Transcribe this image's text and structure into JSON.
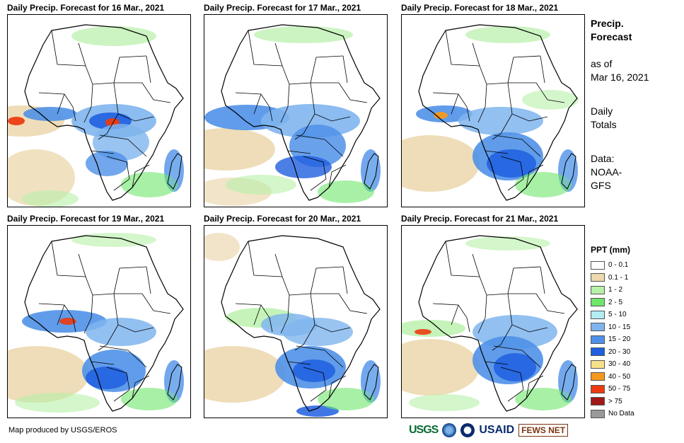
{
  "panels": [
    {
      "title": "Daily Precip. Forecast for 16 Mar., 2021"
    },
    {
      "title": "Daily Precip. Forecast for 17 Mar., 2021"
    },
    {
      "title": "Daily Precip. Forecast for 18 Mar., 2021"
    },
    {
      "title": "Daily Precip. Forecast for 19 Mar., 2021"
    },
    {
      "title": "Daily Precip. Forecast for 20 Mar., 2021"
    },
    {
      "title": "Daily Precip. Forecast for 21 Mar., 2021"
    }
  ],
  "side": {
    "title_line1": "Precip.",
    "title_line2": "Forecast",
    "asof_line1": "as of",
    "asof_line2": "Mar 16, 2021",
    "totals_line1": "Daily",
    "totals_line2": "Totals",
    "data_line1": "Data:",
    "data_line2": "NOAA-",
    "data_line3": "GFS"
  },
  "legend": {
    "title": "PPT (mm)",
    "items": [
      {
        "label": "0 - 0.1",
        "color": "#ffffff"
      },
      {
        "label": "0.1 - 1",
        "color": "#ecd9b0"
      },
      {
        "label": "1 - 2",
        "color": "#b7f0a8"
      },
      {
        "label": "2 - 5",
        "color": "#6ee66a"
      },
      {
        "label": "5 - 10",
        "color": "#b3ecf3"
      },
      {
        "label": "10 - 15",
        "color": "#7fb5ee"
      },
      {
        "label": "15 - 20",
        "color": "#4f91e8"
      },
      {
        "label": "20 - 30",
        "color": "#1f5fe0"
      },
      {
        "label": "30 - 40",
        "color": "#f7e08a"
      },
      {
        "label": "40 - 50",
        "color": "#f39a1c"
      },
      {
        "label": "50 - 75",
        "color": "#ec3b10"
      },
      {
        "label": "> 75",
        "color": "#a01818"
      },
      {
        "label": "No Data",
        "color": "#999999"
      }
    ]
  },
  "credit": "Map produced by USGS/EROS",
  "logos": {
    "usgs": "USGS",
    "usaid": "USAID",
    "fews": "FEWS NET"
  }
}
